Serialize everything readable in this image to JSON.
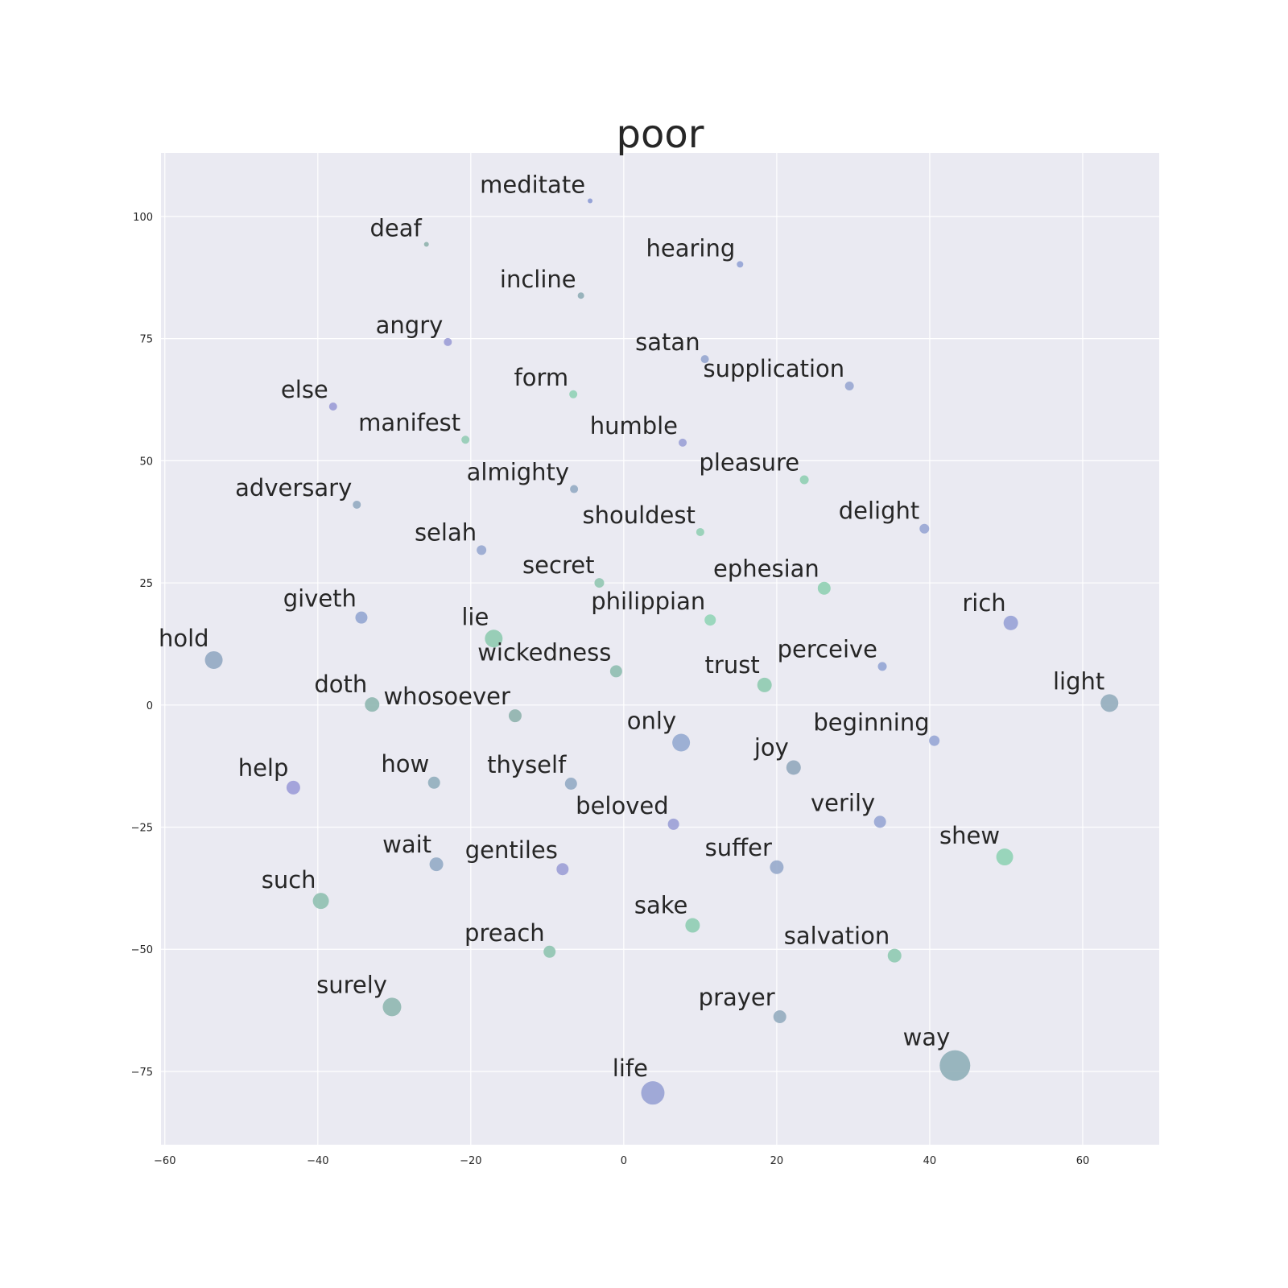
{
  "chart_data": {
    "type": "scatter",
    "title": "poor",
    "xlabel": "",
    "ylabel": "",
    "xlim": [
      -60.5,
      70
    ],
    "ylim": [
      -90,
      113
    ],
    "grid": true,
    "background": "#eaeaf2",
    "xticks": [
      -60,
      -40,
      -20,
      0,
      20,
      40,
      60
    ],
    "xtick_labels": [
      "−60",
      "−40",
      "−20",
      "0",
      "20",
      "40",
      "60"
    ],
    "yticks": [
      -75,
      -50,
      -25,
      0,
      25,
      50,
      75,
      100
    ],
    "ytick_labels": [
      "−75",
      "−50",
      "−25",
      "0",
      "25",
      "50",
      "75",
      "100"
    ],
    "points": [
      {
        "label": "meditate",
        "x": -4.4,
        "y": 103.2,
        "size": 3,
        "color": "#8c9bd4"
      },
      {
        "label": "deaf",
        "x": -25.8,
        "y": 94.3,
        "size": 3,
        "color": "#8fb3ad"
      },
      {
        "label": "hearing",
        "x": 15.2,
        "y": 90.2,
        "size": 4,
        "color": "#93a3d5"
      },
      {
        "label": "incline",
        "x": -5.6,
        "y": 83.8,
        "size": 4,
        "color": "#8fadb6"
      },
      {
        "label": "angry",
        "x": -23.0,
        "y": 74.3,
        "size": 5,
        "color": "#9c9dd6"
      },
      {
        "label": "satan",
        "x": 10.6,
        "y": 70.8,
        "size": 5,
        "color": "#96a6cf"
      },
      {
        "label": "supplication",
        "x": 29.5,
        "y": 65.3,
        "size": 5.5,
        "color": "#99a7d2"
      },
      {
        "label": "form",
        "x": -6.6,
        "y": 63.6,
        "size": 5,
        "color": "#91d1b6"
      },
      {
        "label": "else",
        "x": -38.0,
        "y": 61.1,
        "size": 5,
        "color": "#9b9cd6"
      },
      {
        "label": "manifest",
        "x": -20.7,
        "y": 54.3,
        "size": 5,
        "color": "#93ccb5"
      },
      {
        "label": "humble",
        "x": 7.7,
        "y": 53.7,
        "size": 5,
        "color": "#9ba1d6"
      },
      {
        "label": "pleasure",
        "x": 23.6,
        "y": 46.1,
        "size": 5.5,
        "color": "#90cfb2"
      },
      {
        "label": "almighty",
        "x": -6.5,
        "y": 44.2,
        "size": 5,
        "color": "#94abc3"
      },
      {
        "label": "adversary",
        "x": -34.9,
        "y": 41.0,
        "size": 5,
        "color": "#94abc1"
      },
      {
        "label": "shouldest",
        "x": 10.0,
        "y": 35.4,
        "size": 5,
        "color": "#92cfb4"
      },
      {
        "label": "delight",
        "x": 39.3,
        "y": 36.1,
        "size": 6,
        "color": "#98a6d4"
      },
      {
        "label": "selah",
        "x": -18.6,
        "y": 31.7,
        "size": 6,
        "color": "#98a9d0"
      },
      {
        "label": "secret",
        "x": -3.2,
        "y": 25.0,
        "size": 6,
        "color": "#91c6b1"
      },
      {
        "label": "ephesian",
        "x": 26.2,
        "y": 23.9,
        "size": 8,
        "color": "#90d0b3"
      },
      {
        "label": "giveth",
        "x": -34.3,
        "y": 17.9,
        "size": 7.5,
        "color": "#94a6d2"
      },
      {
        "label": "philippian",
        "x": 11.3,
        "y": 17.4,
        "size": 7,
        "color": "#92d5b7"
      },
      {
        "label": "rich",
        "x": 50.6,
        "y": 16.8,
        "size": 9,
        "color": "#98a2d6"
      },
      {
        "label": "lie",
        "x": -17.0,
        "y": 13.6,
        "size": 11,
        "color": "#8fcbb0"
      },
      {
        "label": "hold",
        "x": -53.6,
        "y": 9.2,
        "size": 11,
        "color": "#92a8c2"
      },
      {
        "label": "perceive",
        "x": 33.8,
        "y": 7.9,
        "size": 5.5,
        "color": "#94a5d4"
      },
      {
        "label": "wickedness",
        "x": -1.0,
        "y": 6.9,
        "size": 7.5,
        "color": "#8fbeb0"
      },
      {
        "label": "trust",
        "x": 18.4,
        "y": 4.1,
        "size": 9,
        "color": "#8fcbb0"
      },
      {
        "label": "light",
        "x": 63.5,
        "y": 0.4,
        "size": 11,
        "color": "#93adbd"
      },
      {
        "label": "doth",
        "x": -32.9,
        "y": 0.1,
        "size": 9,
        "color": "#8fb7b0"
      },
      {
        "label": "whosoever",
        "x": -14.2,
        "y": -2.2,
        "size": 8,
        "color": "#8fb3ad"
      },
      {
        "label": "beginning",
        "x": 40.6,
        "y": -7.3,
        "size": 6.5,
        "color": "#97a6d5"
      },
      {
        "label": "only",
        "x": 7.5,
        "y": -7.7,
        "size": 11,
        "color": "#95aad0"
      },
      {
        "label": "joy",
        "x": 22.2,
        "y": -12.8,
        "size": 9,
        "color": "#92a9bd"
      },
      {
        "label": "help",
        "x": -43.2,
        "y": -16.9,
        "size": 8.5,
        "color": "#9c9cd8"
      },
      {
        "label": "how",
        "x": -24.8,
        "y": -15.9,
        "size": 7.5,
        "color": "#91aebc"
      },
      {
        "label": "thyself",
        "x": -6.9,
        "y": -16.1,
        "size": 7.5,
        "color": "#93abc4"
      },
      {
        "label": "beloved",
        "x": 6.5,
        "y": -24.4,
        "size": 7,
        "color": "#9ba0d6"
      },
      {
        "label": "verily",
        "x": 33.5,
        "y": -23.9,
        "size": 7.5,
        "color": "#98a6d4"
      },
      {
        "label": "wait",
        "x": -24.5,
        "y": -32.6,
        "size": 8.5,
        "color": "#93abc5"
      },
      {
        "label": "gentiles",
        "x": -8.0,
        "y": -33.6,
        "size": 7.5,
        "color": "#9c9fd6"
      },
      {
        "label": "suffer",
        "x": 20.0,
        "y": -33.2,
        "size": 8.5,
        "color": "#97aacb"
      },
      {
        "label": "shew",
        "x": 49.8,
        "y": -31.1,
        "size": 10.5,
        "color": "#90d3b5"
      },
      {
        "label": "such",
        "x": -39.6,
        "y": -40.1,
        "size": 10,
        "color": "#8fc0b0"
      },
      {
        "label": "sake",
        "x": 9.0,
        "y": -45.1,
        "size": 9,
        "color": "#8fcdb2"
      },
      {
        "label": "preach",
        "x": -9.7,
        "y": -50.5,
        "size": 7.5,
        "color": "#8fc4b0"
      },
      {
        "label": "salvation",
        "x": 35.4,
        "y": -51.3,
        "size": 8.5,
        "color": "#8fcab1"
      },
      {
        "label": "surely",
        "x": -30.3,
        "y": -61.8,
        "size": 11.5,
        "color": "#8fb7b0"
      },
      {
        "label": "prayer",
        "x": 20.4,
        "y": -63.8,
        "size": 8,
        "color": "#94acbf"
      },
      {
        "label": "way",
        "x": 43.3,
        "y": -73.8,
        "size": 19,
        "color": "#8fafb8"
      },
      {
        "label": "life",
        "x": 3.8,
        "y": -79.4,
        "size": 14.5,
        "color": "#98a2d4"
      }
    ]
  }
}
